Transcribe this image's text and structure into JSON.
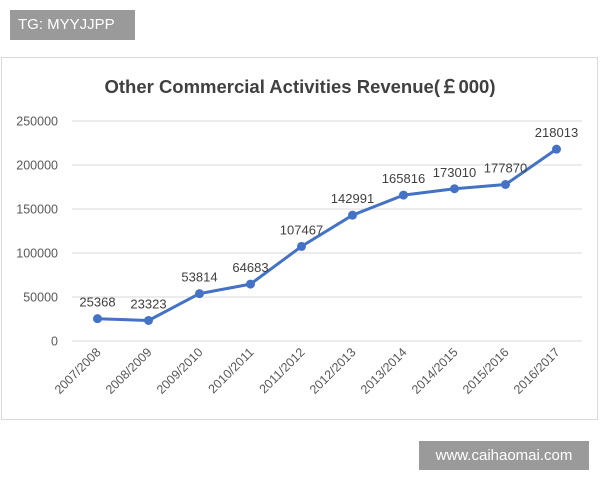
{
  "watermark_top": "TG: MYYJJPP",
  "watermark_bottom": "www.caihaomai.com",
  "colors": {
    "line": "#4472c4",
    "grid": "#d9d9d9",
    "badge": "#9a9a9a"
  },
  "chart_data": {
    "type": "line",
    "title": "Other Commercial Activities Revenue(￡000)",
    "xlabel": "",
    "ylabel": "",
    "ylim": [
      0,
      250000
    ],
    "yticks": [
      0,
      50000,
      100000,
      150000,
      200000,
      250000
    ],
    "ytick_labels": [
      "0",
      "50000",
      "100000",
      "150000",
      "200000",
      "250000"
    ],
    "grid": true,
    "categories": [
      "2007/2008",
      "2008/2009",
      "2009/2010",
      "2010/2011",
      "2011/2012",
      "2012/2013",
      "2013/2014",
      "2014/2015",
      "2015/2016",
      "2016/2017"
    ],
    "series": [
      {
        "name": "Revenue",
        "values": [
          25368,
          23323,
          53814,
          64683,
          107467,
          142991,
          165816,
          173010,
          177870,
          218013
        ],
        "labels": [
          "25368",
          "23323",
          "53814",
          "64683",
          "107467",
          "142991",
          "165816",
          "173010",
          "177870",
          "218013"
        ]
      }
    ]
  }
}
